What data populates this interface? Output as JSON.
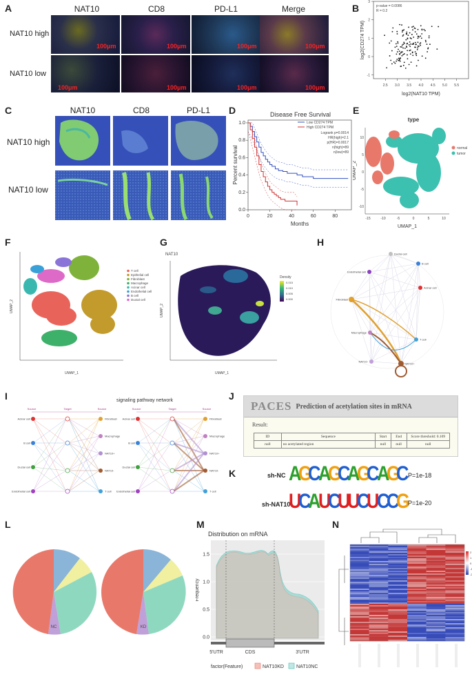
{
  "panels": {
    "A": "A",
    "B": "B",
    "C": "C",
    "D": "D",
    "E": "E",
    "F": "F",
    "G": "G",
    "H": "H",
    "I": "I",
    "J": "J",
    "K": "K",
    "L": "L",
    "M": "M",
    "N": "N"
  },
  "panelA": {
    "columns": [
      "NAT10",
      "CD8",
      "PD-L1",
      "Merge"
    ],
    "rows": [
      "NAT10 high",
      "NAT10 low"
    ],
    "scale": "100μm"
  },
  "panelB": {
    "stat1": "p-value = 0.0086",
    "stat2": "R = 0.2",
    "xlabel": "log2(NAT10 TPM)",
    "ylabel": "log2(CD274 TPM)"
  },
  "panelC": {
    "columns": [
      "NAT10",
      "CD8",
      "PD-L1"
    ],
    "rows": [
      "NAT10 high",
      "NAT10 low"
    ]
  },
  "chart_data": [
    {
      "type": "scatter",
      "panel": "B",
      "xlabel": "log2(NAT10 TPM)",
      "ylabel": "log2(CD274 TPM)",
      "xlim": [
        2.0,
        6.0
      ],
      "ylim": [
        -1.2,
        3.0
      ],
      "xticks": [
        "2.5",
        "3.0",
        "3.5",
        "4.0",
        "4.5",
        "5.0",
        "5.5"
      ],
      "yticks": [
        "-1",
        "0",
        "1",
        "2",
        "3"
      ],
      "annotations": [
        "p-value = 0.0086",
        "R = 0.2"
      ]
    },
    {
      "type": "line",
      "panel": "D",
      "title": "Disease Free Survival",
      "xlabel": "Months",
      "ylabel": "Percent survival",
      "xlim": [
        0,
        95
      ],
      "ylim": [
        0,
        1.0
      ],
      "xticks": [
        "0",
        "20",
        "40",
        "60",
        "80"
      ],
      "yticks": [
        "0.0",
        "0.2",
        "0.4",
        "0.6",
        "0.8",
        "1.0"
      ],
      "legend": [
        "Low CD274 TPM",
        "High CD274 TPM"
      ],
      "stats": [
        "Logrank p=0.0014",
        "HR(high)=2.1",
        "p(HR)=0.0017",
        "n(high)=89",
        "n(low)=89"
      ],
      "series": [
        {
          "name": "Low CD274 TPM",
          "color": "#3050c0",
          "x": [
            0,
            2,
            4,
            6,
            8,
            10,
            12,
            14,
            16,
            18,
            20,
            22,
            25,
            28,
            32,
            36,
            40,
            45,
            50,
            55,
            60,
            70,
            80,
            92
          ],
          "y": [
            1.0,
            0.96,
            0.9,
            0.84,
            0.78,
            0.72,
            0.66,
            0.62,
            0.58,
            0.55,
            0.52,
            0.5,
            0.47,
            0.45,
            0.44,
            0.42,
            0.42,
            0.4,
            0.38,
            0.38,
            0.36,
            0.36,
            0.36,
            0.36
          ]
        },
        {
          "name": "High CD274 TPM",
          "color": "#d03030",
          "x": [
            0,
            2,
            4,
            6,
            8,
            10,
            12,
            14,
            16,
            18,
            20,
            22,
            24,
            26,
            28,
            30,
            34,
            38,
            42,
            45
          ],
          "y": [
            1.0,
            0.92,
            0.82,
            0.72,
            0.62,
            0.52,
            0.44,
            0.38,
            0.32,
            0.27,
            0.23,
            0.2,
            0.18,
            0.16,
            0.14,
            0.12,
            0.1,
            0.1,
            0.1,
            0.05
          ]
        }
      ]
    },
    {
      "type": "scatter",
      "panel": "E",
      "title": "type",
      "xlabel": "UMAP_1",
      "ylabel": "UMAP_2",
      "xticks": [
        "-15",
        "-10",
        "-5",
        "0",
        "5",
        "10"
      ],
      "yticks": [
        "-10",
        "-5",
        "0",
        "5",
        "10"
      ],
      "legend": [
        "normal",
        "tumor"
      ]
    },
    {
      "type": "pie",
      "panel": "L",
      "labels": [
        "NC",
        "KD"
      ]
    },
    {
      "type": "area",
      "panel": "M",
      "title": "Distribution on mRNA",
      "ylabel": "Frequency",
      "yticks": [
        "0.0",
        "0.5",
        "1.0",
        "1.5"
      ],
      "regions": [
        "5'UTR",
        "CDS",
        "3'UTR"
      ],
      "legend_title": "factor(Feature)",
      "legend": [
        "NAT10KD",
        "NAT10NC"
      ]
    },
    {
      "type": "heatmap",
      "panel": "N",
      "scale": [
        "2",
        "1",
        "0",
        "-1",
        "-2"
      ]
    }
  ],
  "panelF": {
    "xlabel": "UMAP_1",
    "ylabel": "UMAP_2",
    "legend": [
      "T cell",
      "Epithelial cell",
      "Fibroblast",
      "Macrophage",
      "Acinar cell",
      "Endothelial cell",
      "B cell",
      "Ductal cell"
    ],
    "colors": [
      "#e8645a",
      "#c39b2c",
      "#7fb23a",
      "#3db06a",
      "#3ab8b0",
      "#3aa0d8",
      "#8a74d8",
      "#de6ac8"
    ]
  },
  "panelG": {
    "title": "NAT10",
    "xlabel": "UMAP_1",
    "ylabel": "UMAP_2",
    "legend_title": "Density",
    "legend": [
      "0.015",
      "0.010",
      "0.005",
      "0.000"
    ]
  },
  "panelH": {
    "nodes": [
      "Ductal cell",
      "B cell",
      "Acinar cell",
      "T cell",
      "NAT10+",
      "NAT10-",
      "Macrophage",
      "Fibroblast",
      "Endothelial cell"
    ]
  },
  "panelI": {
    "title": "signaling pathway network",
    "source": "Source",
    "target": "Target",
    "left_nodes": [
      "Acinar cell",
      "B cell",
      "Ductal cell",
      "Endothelial cell"
    ],
    "right_nodes": [
      "Fibroblast",
      "Macrophage",
      "NAT10+",
      "NAT10-",
      "T cell"
    ]
  },
  "panelJ": {
    "logo": "PACES",
    "subtitle": "Prediction of acetylation sites in mRNA",
    "result": "Result:",
    "headers": [
      "ID",
      "Sequence",
      "Start",
      "End",
      "Score threshold: 0.109"
    ],
    "row": [
      "null",
      "no acetylated region",
      "null",
      "null",
      "null"
    ]
  },
  "panelK": {
    "rows": [
      {
        "label": "sh-NC",
        "seq": "AGCAGCAGCAGC",
        "p": "P=1e-18"
      },
      {
        "label": "sh-NAT10",
        "seq": "UCAUCUUCUCCG",
        "p": "P=1e-20"
      }
    ]
  }
}
